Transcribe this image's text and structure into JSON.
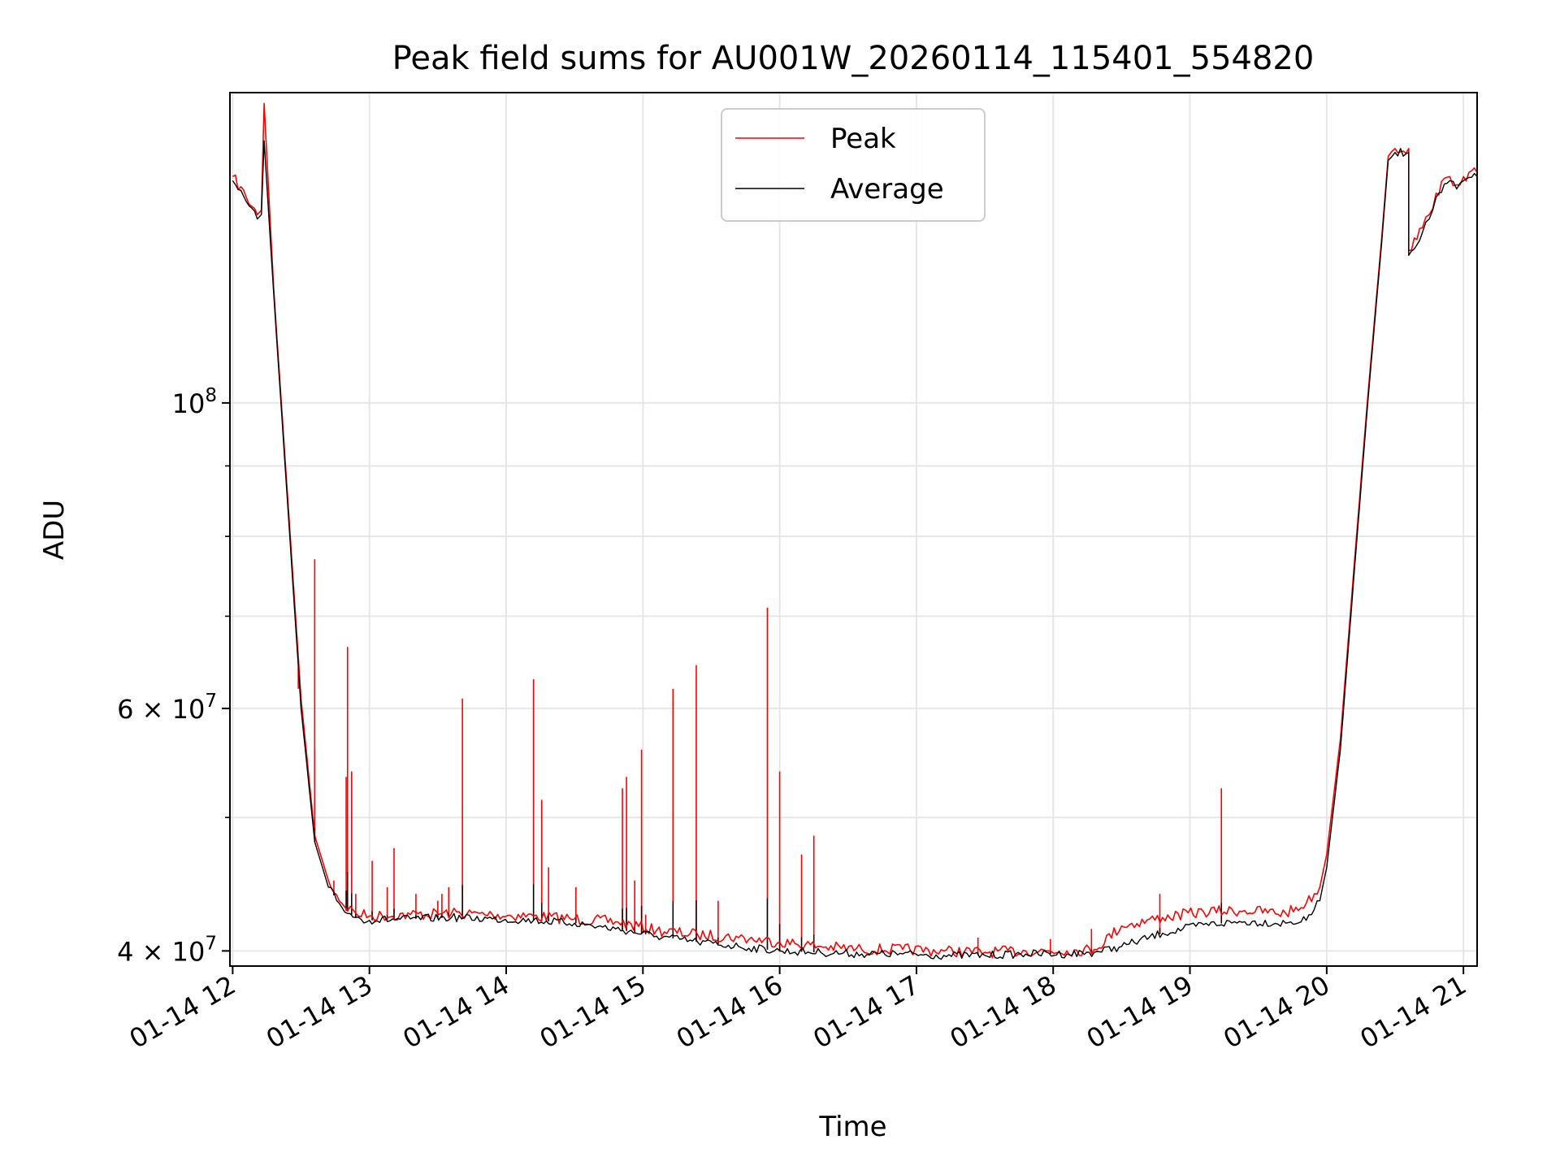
{
  "chart_data": {
    "type": "line",
    "title": "Peak field sums for AU001W_20260114_115401_554820",
    "xlabel": "Time",
    "ylabel": "ADU",
    "yscale": "log",
    "xlim": [
      11.98,
      21.1
    ],
    "ylim": [
      39000000,
      168000000
    ],
    "grid": true,
    "legend": {
      "position": "top-center",
      "entries": [
        "Peak",
        "Average"
      ]
    },
    "colors": {
      "peak": "#ff0000",
      "average": "#000000",
      "grid": "#e6e6e6"
    },
    "x_ticks": [
      {
        "value": 12,
        "label": "01-14 12"
      },
      {
        "value": 13,
        "label": "01-14 13"
      },
      {
        "value": 14,
        "label": "01-14 14"
      },
      {
        "value": 15,
        "label": "01-14 15"
      },
      {
        "value": 16,
        "label": "01-14 16"
      },
      {
        "value": 17,
        "label": "01-14 17"
      },
      {
        "value": 18,
        "label": "01-14 18"
      },
      {
        "value": 19,
        "label": "01-14 19"
      },
      {
        "value": 20,
        "label": "01-14 20"
      },
      {
        "value": 21,
        "label": "01-14 21"
      }
    ],
    "y_major_ticks": [
      {
        "value": 40000000,
        "mantissa": "4",
        "exp": "7"
      },
      {
        "value": 60000000,
        "mantissa": "6",
        "exp": "7"
      },
      {
        "value": 100000000,
        "mantissa": "",
        "exp": "8"
      }
    ],
    "y_minor_ticks": [
      50000000,
      70000000,
      80000000,
      90000000
    ],
    "series": [
      {
        "name": "Average",
        "x": [
          12.0,
          12.1,
          12.18,
          12.21,
          12.23,
          12.3,
          12.4,
          12.5,
          12.6,
          12.7,
          12.8,
          12.9,
          13.0,
          13.3,
          13.6,
          13.9,
          14.2,
          14.5,
          14.8,
          15.1,
          15.4,
          15.7,
          16.0,
          16.3,
          16.6,
          16.9,
          17.2,
          17.5,
          17.8,
          18.1,
          18.3,
          18.5,
          18.8,
          19.1,
          19.4,
          19.7,
          19.85,
          19.95,
          20.0,
          20.1,
          20.2,
          20.3,
          20.4,
          20.45,
          20.5,
          20.6,
          20.6,
          20.7,
          20.75,
          20.8,
          20.9,
          20.95,
          21.0,
          21.1
        ],
        "y": [
          145000000,
          140000000,
          136000000,
          137000000,
          155000000,
          120000000,
          85000000,
          60000000,
          48000000,
          44500000,
          43000000,
          42300000,
          42100000,
          42200000,
          42300000,
          42200000,
          42100000,
          41900000,
          41500000,
          41000000,
          40600000,
          40300000,
          40000000,
          39900000,
          39800000,
          39800000,
          39700000,
          39700000,
          39800000,
          39800000,
          39900000,
          40300000,
          41200000,
          41800000,
          42000000,
          41900000,
          42100000,
          43500000,
          46000000,
          56000000,
          75000000,
          100000000,
          130000000,
          150000000,
          152000000,
          152000000,
          128000000,
          133000000,
          136000000,
          141000000,
          145000000,
          143000000,
          145000000,
          146000000
        ]
      },
      {
        "name": "Peak",
        "x": [
          12.0,
          12.1,
          12.18,
          12.21,
          12.23,
          12.3,
          12.4,
          12.5,
          12.6,
          12.7,
          12.8,
          12.9,
          13.0,
          13.3,
          13.6,
          13.9,
          14.2,
          14.5,
          14.8,
          15.1,
          15.4,
          15.7,
          16.0,
          16.3,
          16.6,
          16.9,
          17.2,
          17.5,
          17.8,
          18.1,
          18.3,
          18.5,
          18.8,
          19.1,
          19.4,
          19.7,
          19.85,
          19.95,
          20.0,
          20.1,
          20.2,
          20.3,
          20.4,
          20.45,
          20.5,
          20.6,
          20.6,
          20.7,
          20.75,
          20.8,
          20.9,
          20.95,
          21.0,
          21.1
        ],
        "y": [
          146000000,
          141000000,
          137000000,
          138000000,
          165000000,
          121000000,
          86000000,
          61000000,
          48500000,
          45000000,
          43300000,
          42600000,
          42400000,
          42500000,
          42600000,
          42500000,
          42400000,
          42200000,
          42000000,
          41400000,
          41100000,
          40900000,
          40600000,
          40300000,
          40100000,
          40100000,
          40000000,
          39900000,
          40000000,
          40000000,
          40100000,
          41700000,
          42300000,
          42700000,
          42800000,
          42600000,
          43300000,
          44500000,
          47000000,
          57000000,
          76000000,
          101000000,
          131000000,
          151000000,
          153000000,
          153000000,
          129000000,
          134000000,
          137000000,
          142000000,
          146000000,
          144000000,
          146000000,
          147000000
        ]
      }
    ],
    "peak_spikes": [
      {
        "x": 12.48,
        "y": 62000000
      },
      {
        "x": 12.6,
        "y": 77000000
      },
      {
        "x": 12.6,
        "y": 56000000
      },
      {
        "x": 12.74,
        "y": 45000000
      },
      {
        "x": 12.83,
        "y": 53500000
      },
      {
        "x": 12.84,
        "y": 66500000
      },
      {
        "x": 12.87,
        "y": 54000000
      },
      {
        "x": 12.9,
        "y": 44000000
      },
      {
        "x": 13.02,
        "y": 46500000
      },
      {
        "x": 13.13,
        "y": 44500000
      },
      {
        "x": 13.18,
        "y": 47500000
      },
      {
        "x": 13.34,
        "y": 44000000
      },
      {
        "x": 13.5,
        "y": 43500000
      },
      {
        "x": 13.53,
        "y": 44000000
      },
      {
        "x": 13.58,
        "y": 44500000
      },
      {
        "x": 13.68,
        "y": 61000000
      },
      {
        "x": 14.2,
        "y": 63000000
      },
      {
        "x": 14.26,
        "y": 51500000
      },
      {
        "x": 14.31,
        "y": 46000000
      },
      {
        "x": 14.51,
        "y": 44500000
      },
      {
        "x": 14.85,
        "y": 52500000
      },
      {
        "x": 14.88,
        "y": 53500000
      },
      {
        "x": 14.94,
        "y": 45000000
      },
      {
        "x": 14.99,
        "y": 56000000
      },
      {
        "x": 15.02,
        "y": 42500000
      },
      {
        "x": 15.22,
        "y": 62000000
      },
      {
        "x": 15.39,
        "y": 64500000
      },
      {
        "x": 15.55,
        "y": 43500000
      },
      {
        "x": 15.91,
        "y": 71000000
      },
      {
        "x": 16.0,
        "y": 54000000
      },
      {
        "x": 16.16,
        "y": 47000000
      },
      {
        "x": 16.25,
        "y": 48500000
      },
      {
        "x": 17.45,
        "y": 40900000
      },
      {
        "x": 17.98,
        "y": 40800000
      },
      {
        "x": 18.28,
        "y": 41500000
      },
      {
        "x": 18.78,
        "y": 44000000
      },
      {
        "x": 19.23,
        "y": 52500000
      }
    ]
  }
}
